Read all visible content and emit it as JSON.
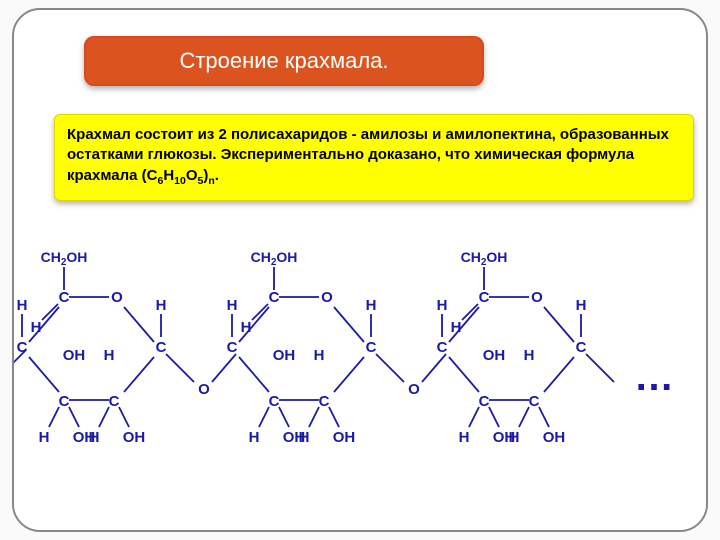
{
  "colors": {
    "frame_border": "#888888",
    "title_bg": "#db5420",
    "title_border": "#d94a1a",
    "title_text": "#ffffff",
    "body_bg": "#ffff00",
    "body_text": "#000000",
    "diagram_stroke": "#1a1aa6",
    "diagram_text": "#1a1aa6",
    "ellipsis": "#1a1aa6"
  },
  "title": "Строение крахмала.",
  "body": {
    "pre": "Крахмал состоит из 2 полисахаридов - амилозы и амилопектина, образованных остатками глюкозы. Экспериментально доказано, что химическая формула крахмала (С",
    "f_c": "6",
    "mid1": "Н",
    "f_h": "10",
    "mid2": "О",
    "f_o": "5",
    "mid3": ")",
    "f_n": "n",
    "post": "."
  },
  "diagram": {
    "ellipsis": "…",
    "font_size_atom": 15,
    "font_size_group": 14,
    "unit_width": 210,
    "labels": {
      "C": "C",
      "H": "H",
      "O": "O",
      "OH": "OH",
      "CH2OH": "CH2OH"
    }
  }
}
